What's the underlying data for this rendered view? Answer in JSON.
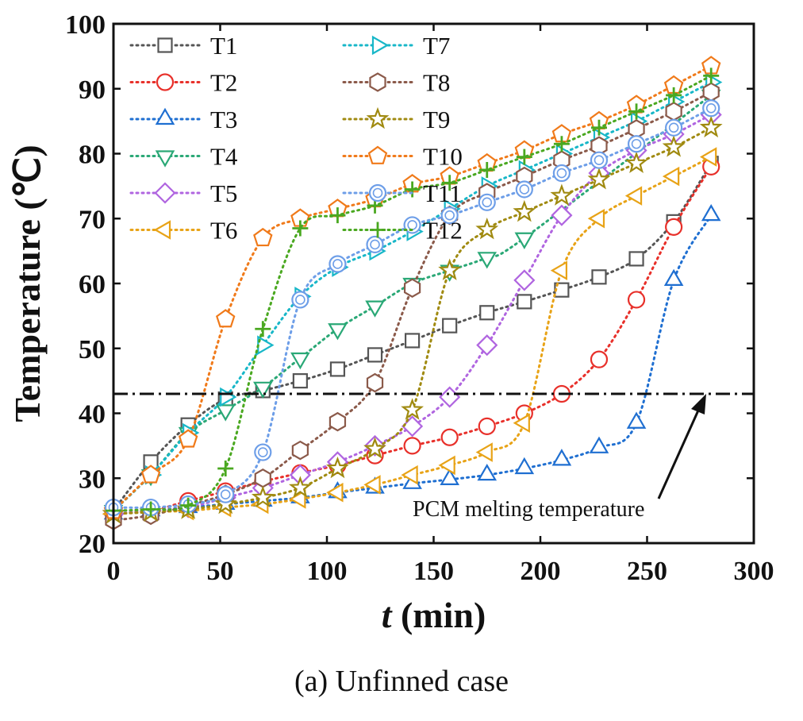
{
  "chart_data": {
    "type": "line",
    "xlabel_italic": "t",
    "xlabel_rest": " (min)",
    "ylabel": "Temperature (℃)",
    "xlim": [
      0,
      300
    ],
    "ylim": [
      20,
      100
    ],
    "xticks": [
      0,
      50,
      100,
      150,
      200,
      250,
      300
    ],
    "yticks": [
      20,
      30,
      40,
      50,
      60,
      70,
      80,
      90,
      100
    ],
    "grid": false,
    "legend_position": "top-left",
    "reference_line": {
      "y": 43,
      "label": "PCM melting temperature"
    },
    "series": [
      {
        "name": "T1",
        "color": "#555555",
        "marker": "square",
        "x": [
          0,
          17.5,
          35,
          52.5,
          70,
          87.5,
          105,
          122.5,
          140,
          157.5,
          175,
          192.5,
          210,
          227.5,
          245,
          262.5,
          280
        ],
        "y": [
          25,
          32.5,
          38.2,
          42.2,
          43.5,
          45,
          46.8,
          49,
          51.2,
          53.5,
          55.5,
          57.2,
          59,
          61,
          63.8,
          69.5,
          78.5
        ]
      },
      {
        "name": "T2",
        "color": "#e8302a",
        "marker": "circle",
        "x": [
          0,
          17.5,
          35,
          52.5,
          70,
          87.5,
          105,
          122.5,
          140,
          157.5,
          175,
          192.5,
          210,
          227.5,
          245,
          262.5,
          280
        ],
        "y": [
          24.5,
          25,
          26.5,
          28,
          29.5,
          30.8,
          32,
          33.5,
          35,
          36.3,
          38,
          40,
          43,
          48.3,
          57.5,
          68.7,
          78
        ]
      },
      {
        "name": "T3",
        "color": "#1f6fd1",
        "marker": "triangle-up",
        "x": [
          0,
          17.5,
          35,
          52.5,
          70,
          87.5,
          105,
          122.5,
          140,
          157.5,
          175,
          192.5,
          210,
          227.5,
          245,
          262.5,
          280
        ],
        "y": [
          24.5,
          25,
          25.5,
          26,
          26.5,
          27,
          27.8,
          28.5,
          29.2,
          29.8,
          30.5,
          31.5,
          32.8,
          34.7,
          38.5,
          60.5,
          70.5
        ]
      },
      {
        "name": "T4",
        "color": "#2aa876",
        "marker": "triangle-down",
        "x": [
          0,
          17.5,
          35,
          52.5,
          70,
          87.5,
          105,
          122.5,
          140,
          157.5,
          175,
          192.5,
          280
        ],
        "y": [
          25,
          30.5,
          37,
          40.5,
          44,
          48.5,
          53,
          56.5,
          60,
          62,
          64,
          67,
          89
        ]
      },
      {
        "name": "T5",
        "color": "#b065e0",
        "marker": "diamond",
        "x": [
          0,
          17.5,
          35,
          52.5,
          70,
          87.5,
          105,
          122.5,
          140,
          157.5,
          175,
          192.5,
          210,
          227.5,
          245,
          262.5,
          280
        ],
        "y": [
          24.5,
          25,
          25.5,
          27,
          28.5,
          30.5,
          32.5,
          35,
          38,
          42.5,
          50.5,
          60.5,
          70.5,
          77,
          80.5,
          83,
          86
        ]
      },
      {
        "name": "T6",
        "color": "#e8a317",
        "marker": "triangle-left",
        "x": [
          0,
          17.5,
          35,
          52.5,
          70,
          87.5,
          105,
          122.5,
          140,
          157.5,
          175,
          192.5,
          210,
          227.5,
          245,
          262.5,
          280
        ],
        "y": [
          24.5,
          24.8,
          25,
          25.5,
          26,
          26.8,
          27.8,
          29,
          30.5,
          32,
          34,
          38.5,
          62,
          70,
          73.5,
          76.5,
          79.5
        ]
      },
      {
        "name": "T7",
        "color": "#18b7c8",
        "marker": "triangle-right",
        "x": [
          0,
          17.5,
          35,
          52.5,
          70,
          87.5,
          105,
          122.5,
          140,
          157.5,
          175,
          192.5,
          210,
          227.5,
          245,
          262.5,
          280
        ],
        "y": [
          25,
          30.5,
          37,
          42.5,
          50.5,
          58,
          62.5,
          65,
          68,
          71.5,
          75,
          77.5,
          80,
          82.5,
          85,
          88,
          91
        ]
      },
      {
        "name": "T8",
        "color": "#8b5a4a",
        "marker": "hexagon",
        "x": [
          0,
          17.5,
          35,
          52.5,
          70,
          87.5,
          105,
          122.5,
          140,
          157.5,
          175,
          192.5,
          210,
          227.5,
          245,
          262.5,
          280
        ],
        "y": [
          23.5,
          24.3,
          25.8,
          27.5,
          30,
          34.3,
          38.7,
          44.7,
          59.3,
          70.5,
          74,
          76.5,
          79,
          81.2,
          83.8,
          86.5,
          89.5
        ]
      },
      {
        "name": "T9",
        "color": "#a08a10",
        "marker": "star",
        "x": [
          0,
          17.5,
          35,
          52.5,
          70,
          87.5,
          105,
          122.5,
          140,
          157.5,
          175,
          192.5,
          210,
          227.5,
          245,
          262.5,
          280
        ],
        "y": [
          24.5,
          24.8,
          25.2,
          26,
          27,
          28.5,
          31.5,
          34.5,
          40.5,
          62,
          68.3,
          71,
          73.5,
          76,
          78.5,
          81,
          84
        ]
      },
      {
        "name": "T10",
        "color": "#f07a1a",
        "marker": "pentagon",
        "x": [
          0,
          17.5,
          35,
          52.5,
          70,
          87.5,
          105,
          122.5,
          140,
          157.5,
          175,
          192.5,
          210,
          227.5,
          245,
          262.5,
          280
        ],
        "y": [
          25,
          30.5,
          36,
          54.5,
          67,
          70,
          71.5,
          73,
          75.3,
          76.5,
          78.5,
          80.5,
          83,
          85,
          87.5,
          90.5,
          93.5
        ]
      },
      {
        "name": "T11",
        "color": "#6d9ee8",
        "marker": "circle-dot",
        "x": [
          0,
          17.5,
          35,
          52.5,
          70,
          87.5,
          105,
          122.5,
          140,
          157.5,
          175,
          192.5,
          210,
          227.5,
          245,
          262.5,
          280
        ],
        "y": [
          25.5,
          25.5,
          26,
          27.5,
          34,
          57.5,
          63,
          66,
          69,
          70.5,
          72.5,
          74.5,
          77,
          79,
          81.5,
          84,
          87
        ]
      },
      {
        "name": "T12",
        "color": "#4aa820",
        "marker": "plus",
        "x": [
          0,
          17.5,
          35,
          52.5,
          70,
          87.5,
          105,
          122.5,
          140,
          157.5,
          175,
          192.5,
          210,
          227.5,
          245,
          262.5,
          280
        ],
        "y": [
          25,
          25.2,
          25.8,
          31.5,
          53,
          68.5,
          70.5,
          72,
          74.5,
          75.5,
          77.5,
          79.5,
          81.5,
          84,
          86.5,
          89,
          92
        ]
      }
    ]
  },
  "caption": "(a) Unfinned case"
}
